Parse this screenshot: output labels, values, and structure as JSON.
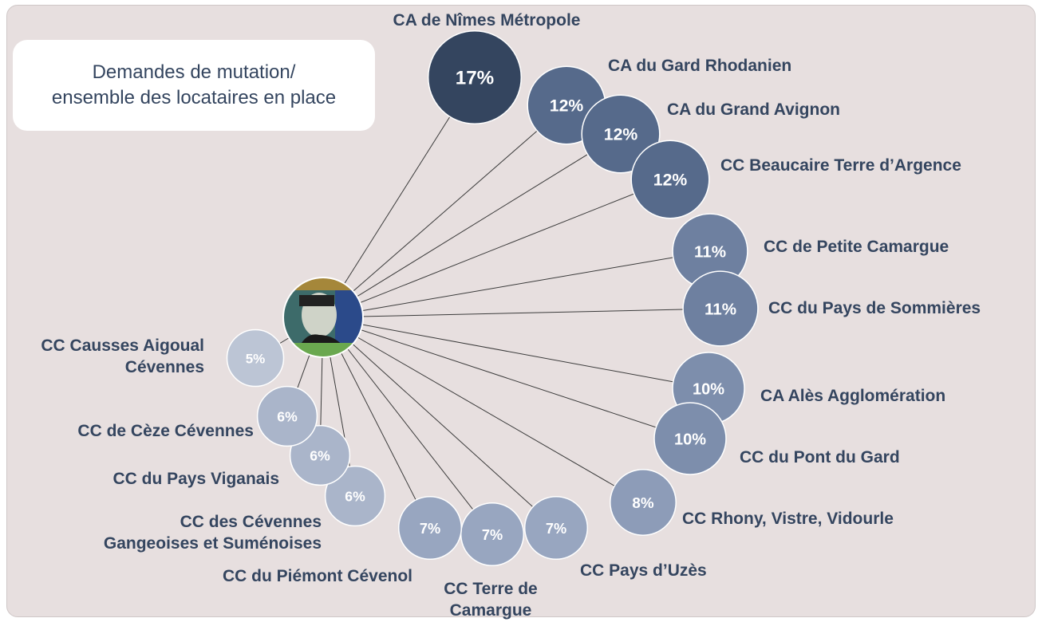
{
  "chart_data": {
    "type": "bubble",
    "title": "Demandes de mutation/\nensemble des locataires en place",
    "categories": [
      "CA de Nîmes Métropole",
      "CA du Gard Rhodanien",
      "CA du Grand Avignon",
      "CC Beaucaire Terre d’Argence",
      "CC de Petite Camargue",
      "CC du Pays de Sommières",
      "CA Alès Agglomération",
      "CC du Pont du Gard",
      "CC Rhony, Vistre, Vidourle",
      "CC Pays d’Uzès",
      "CC Terre de\nCamargue",
      "CC du Piémont Cévenol",
      "CC des Cévennes\nGangeoises et Suménoises",
      "CC du Pays Viganais",
      "CC de Cèze Cévennes",
      "CC Causses Aigoual\nCévennes"
    ],
    "values": [
      17,
      12,
      12,
      12,
      11,
      11,
      10,
      10,
      8,
      7,
      7,
      7,
      6,
      6,
      6,
      5
    ],
    "value_labels": [
      "17%",
      "12%",
      "12%",
      "12%",
      "11%",
      "11%",
      "10%",
      "10%",
      "8%",
      "7%",
      "7%",
      "7%",
      "6%",
      "6%",
      "6%",
      "5%"
    ],
    "colors": [
      "#34455f",
      "#566a8b",
      "#566a8b",
      "#566a8b",
      "#6e80a0",
      "#6e80a0",
      "#7d8eac",
      "#7d8eac",
      "#8d9cb8",
      "#98a6c0",
      "#98a6c0",
      "#98a6c0",
      "#aab5ca",
      "#aab5ca",
      "#aab5ca",
      "#bcc5d5"
    ]
  }
}
